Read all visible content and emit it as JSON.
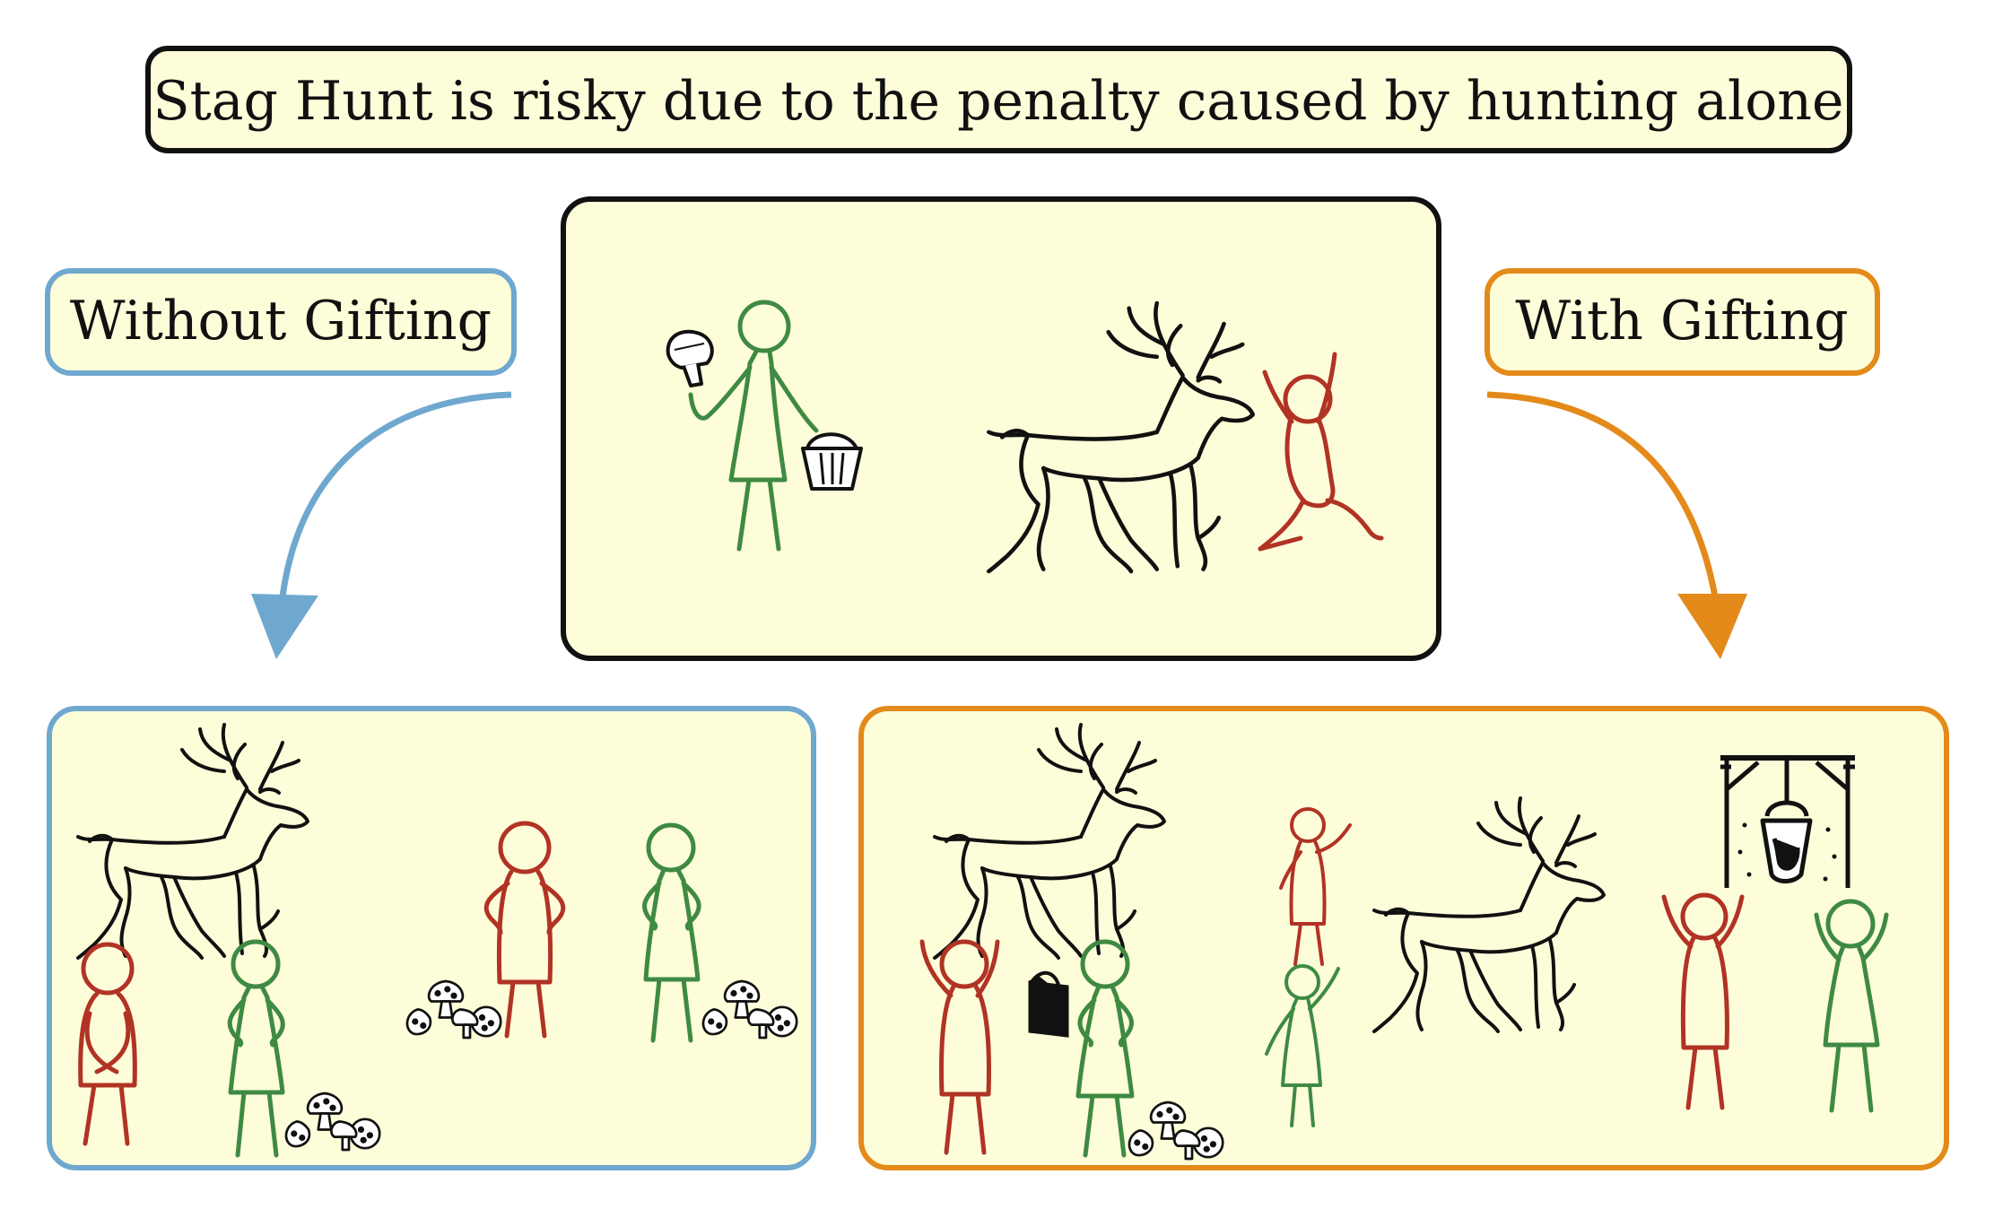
{
  "title": "Stag Hunt is risky due to the penalty caused by hunting alone",
  "left_label": "Without Gifting",
  "right_label": "With Gifting",
  "colors": {
    "panel_fill": "#fdfdd9",
    "blue": "#6fa8cf",
    "orange": "#e38a1a",
    "green": "#3f8a43",
    "red": "#b13324",
    "black": "#111111"
  },
  "icons": {
    "center": [
      "mushroom-icon",
      "basket-icon",
      "stag-icon"
    ],
    "left": [
      "stag-icon",
      "mushroom-cluster-icon"
    ],
    "right": [
      "stag-icon",
      "gift-box-icon",
      "mushroom-cluster-icon",
      "cooking-pot-icon"
    ]
  }
}
